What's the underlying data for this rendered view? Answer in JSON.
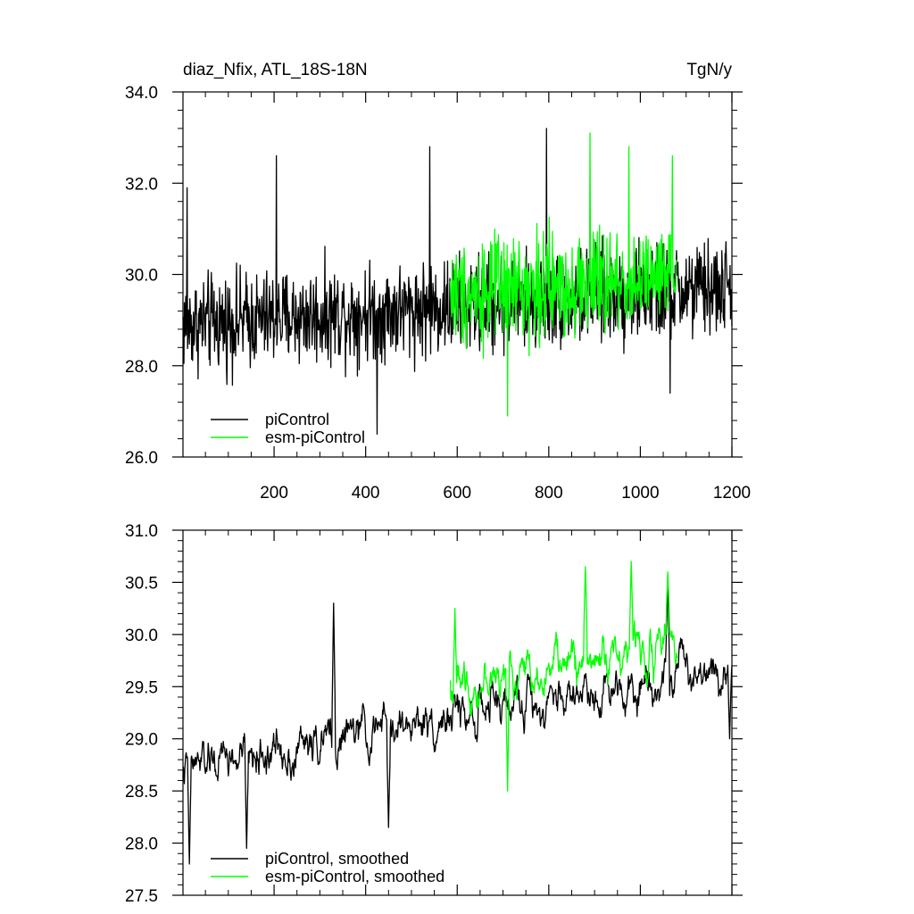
{
  "chart_data": [
    {
      "type": "line",
      "title": "diaz_Nfix, ATL_18S-18N",
      "units": "TgN/y",
      "xlabel": "",
      "ylabel": "",
      "xlim": [
        1,
        1200
      ],
      "ylim": [
        26.0,
        34.0
      ],
      "x_ticks": [
        200,
        400,
        600,
        800,
        1000,
        1200
      ],
      "x_tick_labels": [
        "200",
        "400",
        "600",
        "800",
        "1000",
        "1200"
      ],
      "y_ticks": [
        26.0,
        28.0,
        30.0,
        32.0,
        34.0
      ],
      "y_tick_labels": [
        "26.0",
        "28.0",
        "30.0",
        "32.0",
        "34.0"
      ],
      "legend_position": "bottom-left",
      "series": [
        {
          "name": "piControl",
          "color": "#000000",
          "x_range": [
            1,
            1200
          ],
          "mean_start": 28.9,
          "mean_end": 29.7,
          "noise_amplitude": 0.9,
          "min": 26.3,
          "max": 33.2,
          "annotated_extremes": [
            {
              "x": 10,
              "y": 31.9
            },
            {
              "x": 205,
              "y": 32.6
            },
            {
              "x": 425,
              "y": 26.5
            },
            {
              "x": 540,
              "y": 32.8
            },
            {
              "x": 795,
              "y": 33.2
            },
            {
              "x": 1065,
              "y": 27.4
            }
          ]
        },
        {
          "name": "esm-piControl",
          "color": "#00ff00",
          "x_range": [
            585,
            1080
          ],
          "mean_start": 29.6,
          "mean_end": 29.9,
          "noise_amplitude": 1.0,
          "min": 26.9,
          "max": 33.1,
          "annotated_extremes": [
            {
              "x": 710,
              "y": 26.9
            },
            {
              "x": 890,
              "y": 33.1
            },
            {
              "x": 975,
              "y": 32.8
            },
            {
              "x": 1070,
              "y": 32.6
            }
          ]
        }
      ]
    },
    {
      "type": "line",
      "title": "",
      "xlabel": "",
      "ylabel": "",
      "xlim": [
        1,
        1200
      ],
      "ylim": [
        27.5,
        31.0
      ],
      "x_ticks": [
        200,
        400,
        600,
        800,
        1000,
        1200
      ],
      "y_ticks": [
        27.5,
        28.0,
        28.5,
        29.0,
        29.5,
        30.0,
        30.5,
        31.0
      ],
      "y_tick_labels": [
        "27.5",
        "28.0",
        "28.5",
        "29.0",
        "29.5",
        "30.0",
        "30.5",
        "31.0"
      ],
      "legend_position": "bottom-left",
      "series": [
        {
          "name": "piControl, smoothed",
          "color": "#000000",
          "x_range": [
            1,
            1200
          ],
          "mean_start": 28.7,
          "mean_end": 29.75,
          "noise_amplitude": 0.4,
          "min": 27.8,
          "max": 30.55,
          "annotated_extremes": [
            {
              "x": 15,
              "y": 27.8
            },
            {
              "x": 140,
              "y": 27.95
            },
            {
              "x": 330,
              "y": 30.3
            },
            {
              "x": 450,
              "y": 28.15
            },
            {
              "x": 1060,
              "y": 30.55
            },
            {
              "x": 1195,
              "y": 29.0
            }
          ]
        },
        {
          "name": "esm-piControl, smoothed",
          "color": "#00ff00",
          "x_range": [
            585,
            1080
          ],
          "mean_start": 29.5,
          "mean_end": 29.95,
          "noise_amplitude": 0.4,
          "min": 28.5,
          "max": 30.7,
          "annotated_extremes": [
            {
              "x": 595,
              "y": 30.25
            },
            {
              "x": 710,
              "y": 28.5
            },
            {
              "x": 880,
              "y": 30.65
            },
            {
              "x": 980,
              "y": 30.7
            },
            {
              "x": 1060,
              "y": 30.6
            }
          ]
        }
      ]
    }
  ]
}
